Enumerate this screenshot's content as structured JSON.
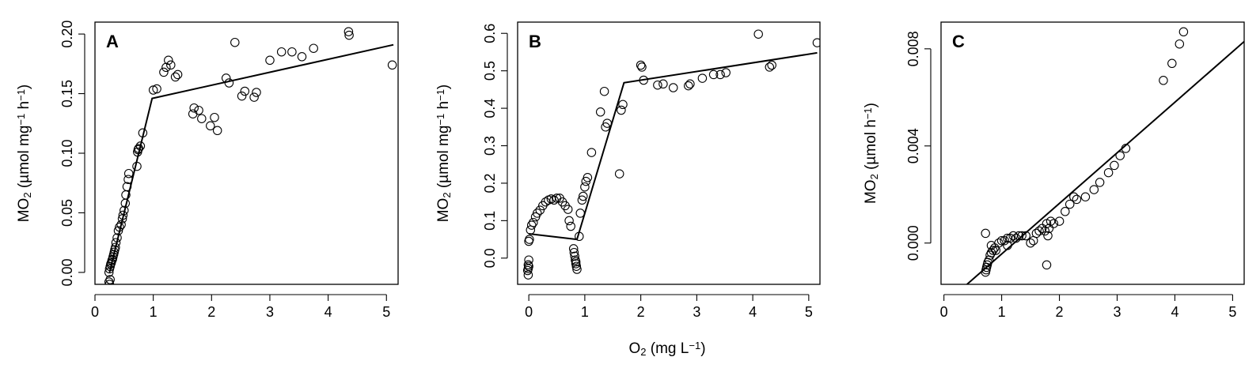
{
  "figure": {
    "shared_xlabel": {
      "base": "O",
      "sub": "2",
      "mid": " (mg L",
      "sup": "−1",
      "end": ")"
    }
  },
  "chart_data": [
    {
      "type": "scatter",
      "panel": "A",
      "xlim": [
        0,
        5.2
      ],
      "ylim": [
        -0.01,
        0.21
      ],
      "xticks": [
        0,
        1,
        2,
        3,
        4,
        5
      ],
      "xtick_labels": [
        "0",
        "1",
        "2",
        "3",
        "4",
        "5"
      ],
      "yticks": [
        0.0,
        0.05,
        0.1,
        0.15,
        0.2
      ],
      "ytick_labels": [
        "0.00",
        "0.05",
        "0.10",
        "0.15",
        "0.20"
      ],
      "ylabel": {
        "base": "MO",
        "sub": "2",
        "mid": " (µmol mg",
        "sup1": "−1",
        "mid2": " h",
        "sup2": "−1",
        "end": ")"
      },
      "fit_line": {
        "x": [
          0.25,
          0.98,
          5.12
        ],
        "y": [
          0.0,
          0.146,
          0.191
        ]
      },
      "points": [
        [
          0.24,
          -0.008
        ],
        [
          0.25,
          -0.01
        ],
        [
          0.26,
          -0.006
        ],
        [
          0.24,
          0.0
        ],
        [
          0.25,
          0.003
        ],
        [
          0.26,
          0.005
        ],
        [
          0.27,
          0.007
        ],
        [
          0.28,
          0.008
        ],
        [
          0.29,
          0.01
        ],
        [
          0.3,
          0.011
        ],
        [
          0.31,
          0.013
        ],
        [
          0.32,
          0.015
        ],
        [
          0.33,
          0.017
        ],
        [
          0.34,
          0.019
        ],
        [
          0.35,
          0.021
        ],
        [
          0.36,
          0.025
        ],
        [
          0.38,
          0.029
        ],
        [
          0.4,
          0.035
        ],
        [
          0.42,
          0.038
        ],
        [
          0.45,
          0.04
        ],
        [
          0.47,
          0.045
        ],
        [
          0.48,
          0.048
        ],
        [
          0.5,
          0.052
        ],
        [
          0.52,
          0.058
        ],
        [
          0.53,
          0.065
        ],
        [
          0.55,
          0.072
        ],
        [
          0.57,
          0.078
        ],
        [
          0.58,
          0.083
        ],
        [
          0.72,
          0.089
        ],
        [
          0.73,
          0.101
        ],
        [
          0.74,
          0.103
        ],
        [
          0.75,
          0.104
        ],
        [
          0.78,
          0.106
        ],
        [
          0.82,
          0.117
        ],
        [
          1.0,
          0.153
        ],
        [
          1.06,
          0.154
        ],
        [
          1.18,
          0.168
        ],
        [
          1.22,
          0.172
        ],
        [
          1.26,
          0.178
        ],
        [
          1.3,
          0.174
        ],
        [
          1.38,
          0.164
        ],
        [
          1.42,
          0.166
        ],
        [
          1.68,
          0.133
        ],
        [
          1.7,
          0.138
        ],
        [
          1.78,
          0.136
        ],
        [
          1.83,
          0.129
        ],
        [
          1.98,
          0.123
        ],
        [
          2.05,
          0.13
        ],
        [
          2.1,
          0.119
        ],
        [
          2.25,
          0.163
        ],
        [
          2.3,
          0.159
        ],
        [
          2.4,
          0.193
        ],
        [
          2.52,
          0.148
        ],
        [
          2.57,
          0.152
        ],
        [
          2.73,
          0.147
        ],
        [
          2.77,
          0.151
        ],
        [
          3.0,
          0.178
        ],
        [
          3.2,
          0.185
        ],
        [
          3.38,
          0.185
        ],
        [
          3.55,
          0.181
        ],
        [
          3.75,
          0.188
        ],
        [
          4.35,
          0.202
        ],
        [
          4.36,
          0.199
        ],
        [
          5.1,
          0.174
        ]
      ]
    },
    {
      "type": "scatter",
      "panel": "B",
      "xlim": [
        -0.2,
        5.2
      ],
      "ylim": [
        -0.07,
        0.63
      ],
      "xticks": [
        0,
        1,
        2,
        3,
        4,
        5
      ],
      "xtick_labels": [
        "0",
        "1",
        "2",
        "3",
        "4",
        "5"
      ],
      "yticks": [
        0.0,
        0.1,
        0.2,
        0.3,
        0.4,
        0.5,
        0.6
      ],
      "ytick_labels": [
        "0.0",
        "0.1",
        "0.2",
        "0.3",
        "0.4",
        "0.5",
        "0.6"
      ],
      "ylabel": {
        "base": "MO",
        "sub": "2",
        "mid": " (µmol mg",
        "sup1": "−1",
        "mid2": " h",
        "sup2": "−1",
        "end": ")"
      },
      "fit_line": {
        "x": [
          0.0,
          0.86,
          1.7,
          5.15
        ],
        "y": [
          0.065,
          0.05,
          0.468,
          0.548
        ]
      },
      "points": [
        [
          -0.01,
          -0.045
        ],
        [
          -0.02,
          -0.033
        ],
        [
          -0.01,
          -0.028
        ],
        [
          0.0,
          -0.022
        ],
        [
          -0.01,
          -0.018
        ],
        [
          0.0,
          -0.005
        ],
        [
          0.0,
          0.045
        ],
        [
          0.01,
          0.05
        ],
        [
          0.03,
          0.075
        ],
        [
          0.05,
          0.088
        ],
        [
          0.08,
          0.095
        ],
        [
          0.12,
          0.11
        ],
        [
          0.15,
          0.12
        ],
        [
          0.2,
          0.128
        ],
        [
          0.25,
          0.14
        ],
        [
          0.3,
          0.15
        ],
        [
          0.35,
          0.155
        ],
        [
          0.4,
          0.158
        ],
        [
          0.45,
          0.155
        ],
        [
          0.5,
          0.16
        ],
        [
          0.55,
          0.16
        ],
        [
          0.6,
          0.15
        ],
        [
          0.65,
          0.14
        ],
        [
          0.7,
          0.13
        ],
        [
          0.72,
          0.1
        ],
        [
          0.75,
          0.085
        ],
        [
          0.8,
          0.025
        ],
        [
          0.81,
          0.015
        ],
        [
          0.82,
          0.005
        ],
        [
          0.83,
          -0.005
        ],
        [
          0.84,
          -0.015
        ],
        [
          0.85,
          -0.022
        ],
        [
          0.86,
          -0.03
        ],
        [
          0.84,
          -0.01
        ],
        [
          0.9,
          0.058
        ],
        [
          0.92,
          0.12
        ],
        [
          0.95,
          0.155
        ],
        [
          0.97,
          0.165
        ],
        [
          1.0,
          0.19
        ],
        [
          1.02,
          0.205
        ],
        [
          1.05,
          0.215
        ],
        [
          1.12,
          0.282
        ],
        [
          1.28,
          0.39
        ],
        [
          1.35,
          0.445
        ],
        [
          1.37,
          0.35
        ],
        [
          1.4,
          0.36
        ],
        [
          1.62,
          0.225
        ],
        [
          1.65,
          0.395
        ],
        [
          1.68,
          0.41
        ],
        [
          2.0,
          0.515
        ],
        [
          2.02,
          0.51
        ],
        [
          2.05,
          0.475
        ],
        [
          2.3,
          0.462
        ],
        [
          2.4,
          0.465
        ],
        [
          2.58,
          0.455
        ],
        [
          2.85,
          0.46
        ],
        [
          2.88,
          0.465
        ],
        [
          3.1,
          0.48
        ],
        [
          3.3,
          0.49
        ],
        [
          3.42,
          0.49
        ],
        [
          3.52,
          0.495
        ],
        [
          4.1,
          0.598
        ],
        [
          4.3,
          0.51
        ],
        [
          4.34,
          0.515
        ],
        [
          5.15,
          0.575
        ]
      ]
    },
    {
      "type": "scatter",
      "panel": "C",
      "xlim": [
        -0.05,
        5.2
      ],
      "ylim": [
        -0.0017,
        0.0091
      ],
      "xticks": [
        0,
        1,
        2,
        3,
        4,
        5
      ],
      "xtick_labels": [
        "0",
        "1",
        "2",
        "3",
        "4",
        "5"
      ],
      "yticks": [
        0.0,
        0.004,
        0.008
      ],
      "ytick_labels": [
        "0.000",
        "0.004",
        "0.008"
      ],
      "ylabel": {
        "base": "MO",
        "sub": "2",
        "mid": " (µmol h",
        "sup": "−1",
        "end": ")"
      },
      "fit_line": {
        "x": [
          0.4,
          5.2
        ],
        "y": [
          -0.0017,
          0.0083
        ]
      },
      "points": [
        [
          0.72,
          0.0004
        ],
        [
          0.72,
          -0.0012
        ],
        [
          0.73,
          -0.0011
        ],
        [
          0.74,
          -0.001
        ],
        [
          0.75,
          -0.0009
        ],
        [
          0.76,
          -0.0008
        ],
        [
          0.78,
          -0.0007
        ],
        [
          0.8,
          -0.0005
        ],
        [
          0.82,
          -0.0004
        ],
        [
          0.85,
          -0.0003
        ],
        [
          0.88,
          -0.0002
        ],
        [
          0.82,
          -0.0001
        ],
        [
          0.9,
          -0.0003
        ],
        [
          0.95,
          0.0
        ],
        [
          1.0,
          0.0001
        ],
        [
          1.05,
          0.0001
        ],
        [
          1.1,
          0.0002
        ],
        [
          1.15,
          0.0002
        ],
        [
          1.1,
          -0.0001
        ],
        [
          1.2,
          0.0003
        ],
        [
          1.25,
          0.0002
        ],
        [
          1.3,
          0.0003
        ],
        [
          1.35,
          0.0003
        ],
        [
          1.42,
          0.0003
        ],
        [
          1.5,
          0.0
        ],
        [
          1.55,
          0.0001
        ],
        [
          1.6,
          0.0004
        ],
        [
          1.65,
          0.0005
        ],
        [
          1.7,
          0.0006
        ],
        [
          1.75,
          0.0005
        ],
        [
          1.78,
          0.0008
        ],
        [
          1.8,
          0.0003
        ],
        [
          1.82,
          0.0006
        ],
        [
          1.85,
          0.0009
        ],
        [
          1.9,
          0.0008
        ],
        [
          1.78,
          -0.0009
        ],
        [
          2.0,
          0.0009
        ],
        [
          2.1,
          0.0013
        ],
        [
          2.18,
          0.0016
        ],
        [
          2.25,
          0.0019
        ],
        [
          2.3,
          0.0018
        ],
        [
          2.45,
          0.0019
        ],
        [
          2.6,
          0.0022
        ],
        [
          2.7,
          0.0025
        ],
        [
          2.85,
          0.0029
        ],
        [
          2.95,
          0.0032
        ],
        [
          3.05,
          0.0036
        ],
        [
          3.15,
          0.0039
        ],
        [
          3.8,
          0.0067
        ],
        [
          3.95,
          0.0074
        ],
        [
          4.08,
          0.0082
        ],
        [
          4.15,
          0.0087
        ]
      ]
    }
  ]
}
